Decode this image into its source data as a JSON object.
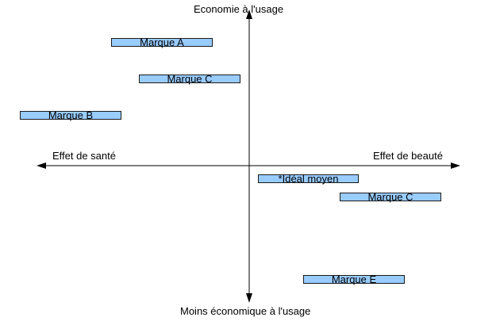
{
  "axes": {
    "top_label": "Economie à l'usage",
    "bottom_label": "Moins économique à l'usage",
    "left_label": "Effet de santé",
    "right_label": "Effet de beauté",
    "line_color": "#000000"
  },
  "box_fill": "#99ccff",
  "brands": [
    {
      "label": "Marque A"
    },
    {
      "label": "Marque C"
    },
    {
      "label": "Marque B"
    },
    {
      "label": "*Idéal moyen"
    },
    {
      "label": "Marque C"
    },
    {
      "label": "Marque E"
    }
  ]
}
